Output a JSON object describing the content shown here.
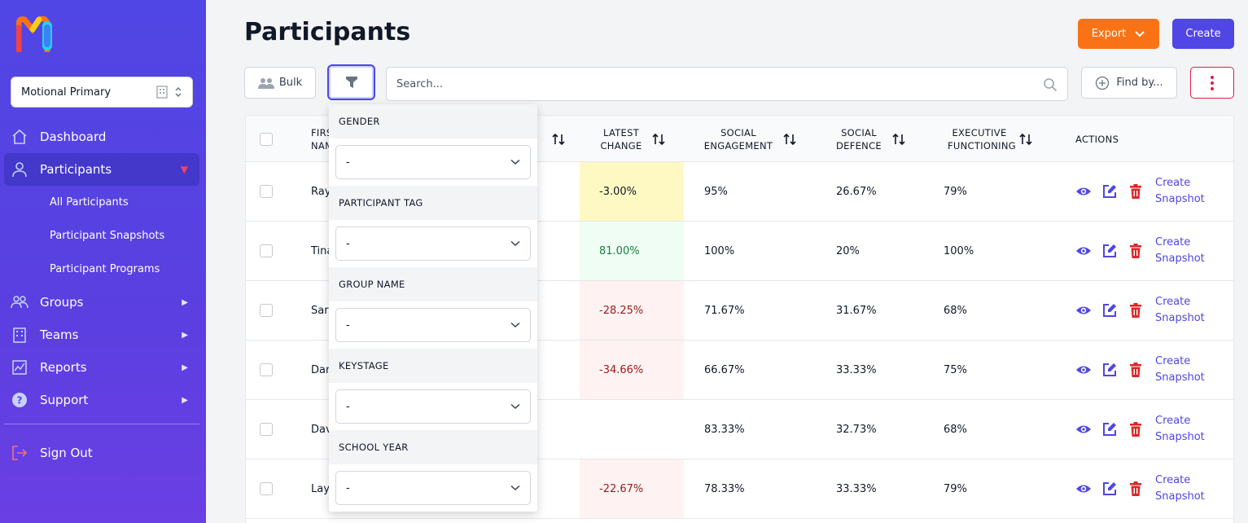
{
  "sidebar": {
    "org_select": {
      "value": "Motional Primary"
    },
    "nav": [
      {
        "label": "Dashboard",
        "icon": "home-icon",
        "active": false,
        "has_children": false
      },
      {
        "label": "Participants",
        "icon": "user-icon",
        "active": true,
        "has_children": true
      },
      {
        "label": "Groups",
        "icon": "users-icon",
        "active": false,
        "has_children": true
      },
      {
        "label": "Teams",
        "icon": "building-icon",
        "active": false,
        "has_children": true
      },
      {
        "label": "Reports",
        "icon": "chart-icon",
        "active": false,
        "has_children": true
      },
      {
        "label": "Support",
        "icon": "question-icon",
        "active": false,
        "has_children": true
      }
    ],
    "participants_sub": [
      "All Participants",
      "Participant Snapshots",
      "Participant Programs"
    ],
    "sign_out": "Sign Out"
  },
  "header": {
    "title": "Participants",
    "export_label": "Export",
    "create_label": "Create"
  },
  "toolbar": {
    "bulk_label": "Bulk",
    "search_placeholder": "Search...",
    "find_by_label": "Find by..."
  },
  "table": {
    "columns": {
      "first_name": "FIRST NAME",
      "latest_change": "LATEST CHANGE",
      "social_engagement": "SOCIAL ENGAGEMENT",
      "social_defence": "SOCIAL DEFENCE",
      "executive_functioning": "EXECUTIVE FUNCTIONING",
      "actions": "ACTIONS"
    },
    "snapshot_link": "Create Snapshot",
    "rows": [
      {
        "first_name": "Ray",
        "latest_change": "-3.00%",
        "change_tone": "warn",
        "social_engagement": "95%",
        "social_defence": "26.67%",
        "executive_functioning": "79%"
      },
      {
        "first_name": "Tina",
        "latest_change": "81.00%",
        "change_tone": "up",
        "social_engagement": "100%",
        "social_defence": "20%",
        "executive_functioning": "100%"
      },
      {
        "first_name": "Sara",
        "latest_change": "-28.25%",
        "change_tone": "down",
        "social_engagement": "71.67%",
        "social_defence": "31.67%",
        "executive_functioning": "68%"
      },
      {
        "first_name": "Dan",
        "latest_change": "-34.66%",
        "change_tone": "down",
        "social_engagement": "66.67%",
        "social_defence": "33.33%",
        "executive_functioning": "75%"
      },
      {
        "first_name": "Dav",
        "latest_change": "",
        "change_tone": "none",
        "social_engagement": "83.33%",
        "social_defence": "32.73%",
        "executive_functioning": "68%"
      },
      {
        "first_name": "Lay",
        "latest_change": "-22.67%",
        "change_tone": "down",
        "social_engagement": "78.33%",
        "social_defence": "33.33%",
        "executive_functioning": "79%"
      }
    ]
  },
  "filter": {
    "fields": [
      {
        "label": "GENDER",
        "value": "-"
      },
      {
        "label": "PARTICIPANT TAG",
        "value": "-"
      },
      {
        "label": "GROUP NAME",
        "value": "-"
      },
      {
        "label": "KEYSTAGE",
        "value": "-"
      },
      {
        "label": "SCHOOL YEAR",
        "value": "-"
      }
    ]
  },
  "colors": {
    "brand": "#4f46e5",
    "export": "#f97316",
    "danger": "#dc2626",
    "change_warn_bg": "#fef9c3",
    "change_up_bg": "#f0fdf4",
    "change_down_bg": "#fef2f2",
    "change_up_text": "#15803d",
    "change_down_text": "#991b1b"
  }
}
